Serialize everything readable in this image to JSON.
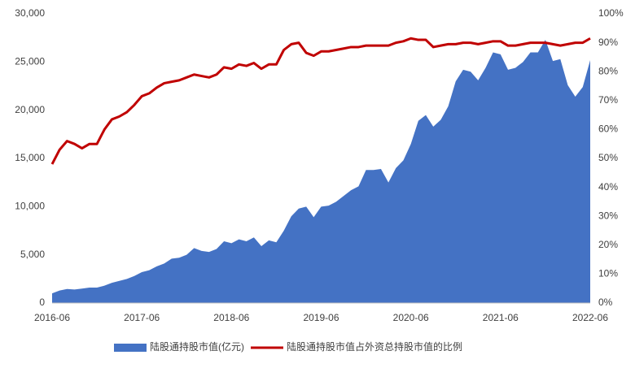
{
  "chart_data": {
    "type": "area",
    "categories": [
      "2016-06",
      null,
      null,
      null,
      null,
      null,
      null,
      null,
      null,
      null,
      null,
      null,
      "2017-06",
      null,
      null,
      null,
      null,
      null,
      null,
      null,
      null,
      null,
      null,
      null,
      "2018-06",
      null,
      null,
      null,
      null,
      null,
      null,
      null,
      null,
      null,
      null,
      null,
      "2019-06",
      null,
      null,
      null,
      null,
      null,
      null,
      null,
      null,
      null,
      null,
      null,
      "2020-06",
      null,
      null,
      null,
      null,
      null,
      null,
      null,
      null,
      null,
      null,
      null,
      "2021-06",
      null,
      null,
      null,
      null,
      null,
      null,
      null,
      null,
      null,
      null,
      null,
      "2022-06"
    ],
    "series": [
      {
        "name": "陆股通持股市值(亿元)",
        "type": "area",
        "color": "#4472c4",
        "values": [
          1000,
          1300,
          1450,
          1400,
          1500,
          1600,
          1600,
          1800,
          2100,
          2300,
          2500,
          2800,
          3200,
          3400,
          3800,
          4100,
          4600,
          4700,
          5000,
          5700,
          5400,
          5300,
          5600,
          6400,
          6200,
          6600,
          6400,
          6800,
          5900,
          6500,
          6300,
          7500,
          9000,
          9800,
          10000,
          8900,
          10000,
          10100,
          10500,
          11100,
          11700,
          12100,
          13800,
          13800,
          13900,
          12500,
          14000,
          14800,
          16500,
          18900,
          19500,
          18300,
          19000,
          20400,
          23000,
          24200,
          24000,
          23100,
          24400,
          26000,
          25800,
          24200,
          24400,
          25000,
          26000,
          26000,
          27300,
          25100,
          25300,
          22600,
          21400,
          22400,
          25200
        ]
      },
      {
        "name": "陆股通持股市值占外资总持股市值的比例",
        "type": "line",
        "axis": "y2",
        "color": "#c00000",
        "values": [
          48,
          53,
          56,
          55,
          53.5,
          55,
          55,
          60,
          63.5,
          64.5,
          66,
          68.5,
          71.5,
          72.5,
          74.5,
          76,
          76.5,
          77,
          78,
          79,
          78.5,
          78,
          79,
          81.5,
          81,
          82.5,
          82,
          83,
          81,
          82.5,
          82.5,
          87.5,
          89.5,
          90,
          86.5,
          85.5,
          87,
          87,
          87.5,
          88,
          88.5,
          88.5,
          89,
          89,
          89,
          89,
          90,
          90.5,
          91.5,
          91,
          91,
          88.5,
          89,
          89.5,
          89.5,
          90,
          90,
          89.5,
          90,
          90.5,
          90.5,
          89,
          89,
          89.5,
          90,
          90,
          90,
          89.5,
          89,
          89.5,
          90,
          90,
          91.5
        ]
      }
    ],
    "ylim": [
      0,
      30000
    ],
    "yticks": [
      0,
      {
        "value": 5000,
        "label": "5,000"
      },
      {
        "value": 10000,
        "label": "10,000"
      },
      {
        "value": 15000,
        "label": "15,000"
      },
      {
        "value": 20000,
        "label": "20,000"
      },
      {
        "value": 25000,
        "label": "25,000"
      },
      {
        "value": 30000,
        "label": "30,000"
      }
    ],
    "y2lim": [
      0,
      100
    ],
    "y2ticks": [
      {
        "value": 0,
        "label": "0%"
      },
      {
        "value": 10,
        "label": "10%"
      },
      {
        "value": 20,
        "label": "20%"
      },
      {
        "value": 30,
        "label": "30%"
      },
      {
        "value": 40,
        "label": "40%"
      },
      {
        "value": 50,
        "label": "50%"
      },
      {
        "value": 60,
        "label": "60%"
      },
      {
        "value": 70,
        "label": "70%"
      },
      {
        "value": 80,
        "label": "80%"
      },
      {
        "value": 90,
        "label": "90%"
      },
      {
        "value": 100,
        "label": "100%"
      }
    ],
    "legend": "bottom",
    "grid": false
  }
}
